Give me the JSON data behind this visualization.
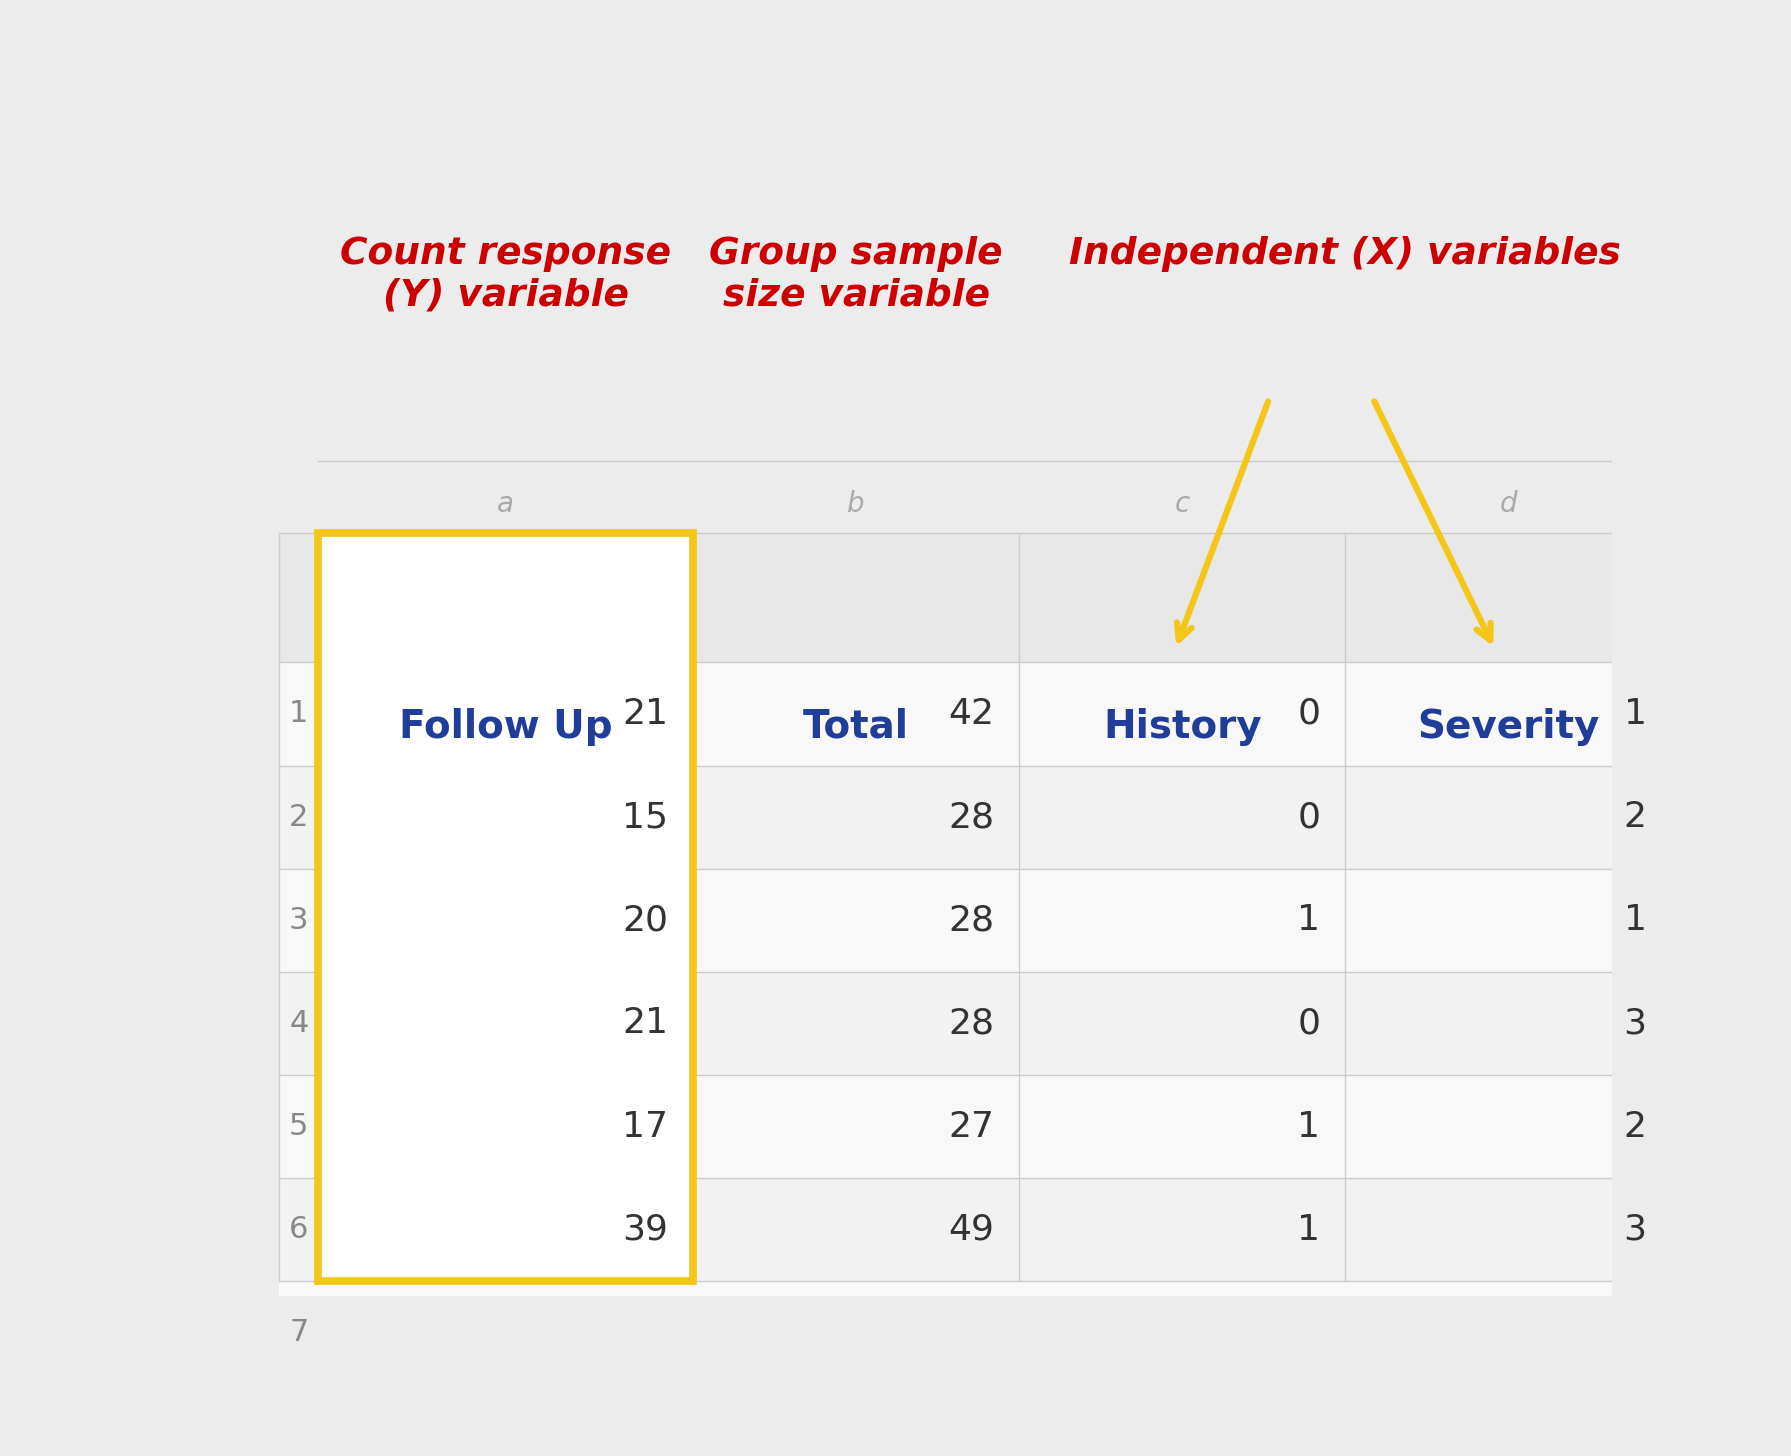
{
  "col_labels": [
    "Follow Up",
    "Total",
    "History",
    "Severity"
  ],
  "col_letters": [
    "a",
    "b",
    "c",
    "d"
  ],
  "data": [
    [
      21,
      42,
      0,
      1
    ],
    [
      15,
      28,
      0,
      2
    ],
    [
      20,
      28,
      1,
      1
    ],
    [
      21,
      28,
      0,
      3
    ],
    [
      17,
      27,
      1,
      2
    ],
    [
      39,
      49,
      1,
      3
    ]
  ],
  "annotation_col_y_label": "Count response\n(Y) variable",
  "annotation_group_label": "Group sample\nsize variable",
  "annotation_indep_label": "Independent (X) variables",
  "annotation_color": "#cc0000",
  "col_header_color": "#1f3d99",
  "col_letter_color": "#aaaaaa",
  "row_num_color": "#888888",
  "cell_data_color": "#333333",
  "grid_color": "#cccccc",
  "highlight_border_color": "#f5c518",
  "arrow_color": "#f5c518",
  "bg_light": "#f2f2f2",
  "bg_lighter": "#f8f8f8"
}
